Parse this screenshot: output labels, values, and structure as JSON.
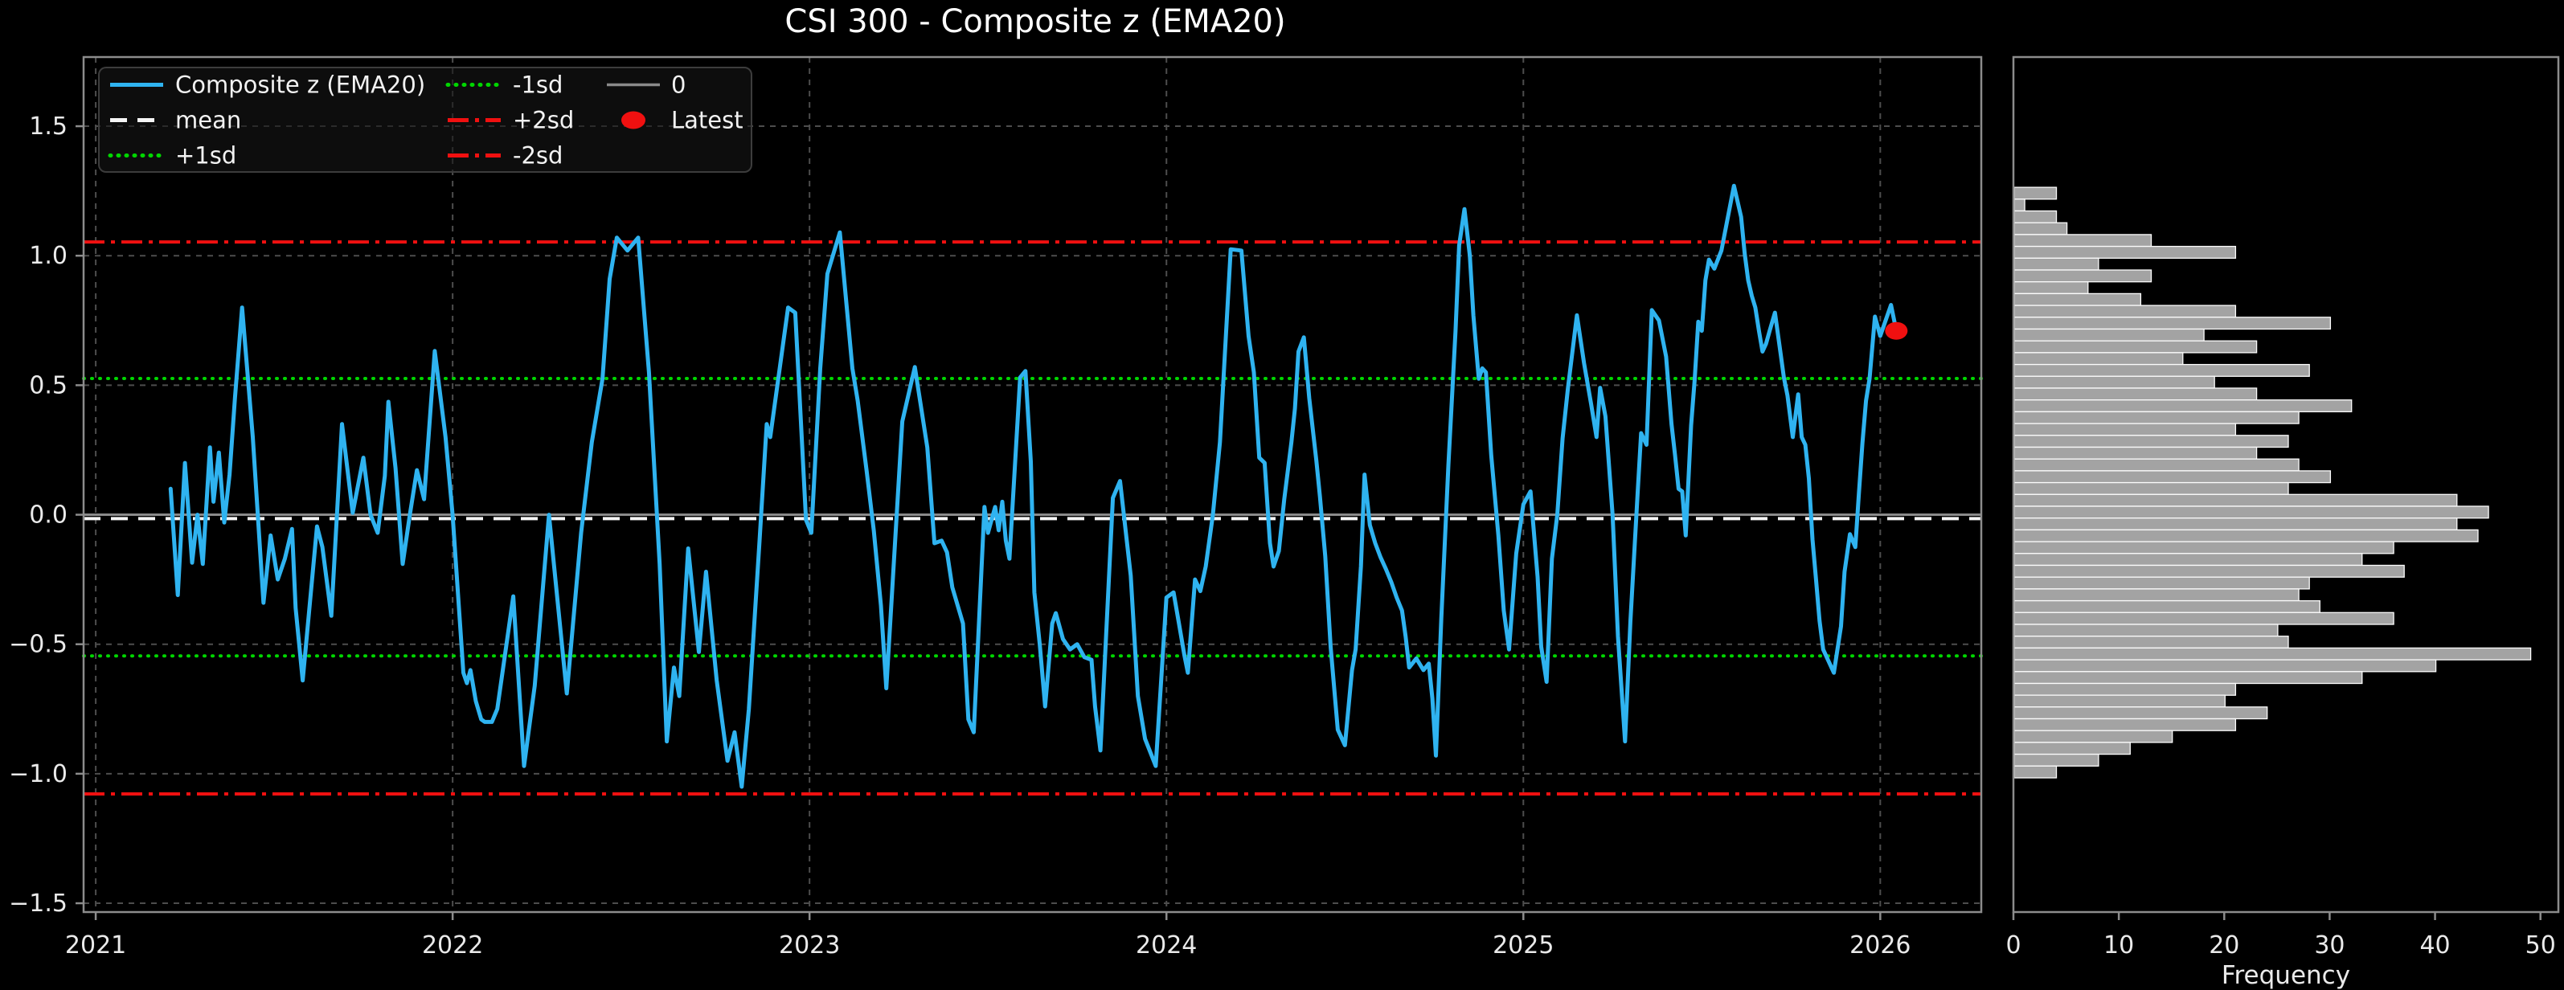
{
  "title": "CSI 300 - Composite z (EMA20)",
  "colors": {
    "background": "#000000",
    "series_line": "#2FB3F0",
    "mean_line": "#f5f5f5",
    "sd1_line": "#00d600",
    "sd2_line": "#f01010",
    "zero_line": "#8a8a8a",
    "latest_marker": "#f01010",
    "hist_bar_fill": "#a3a3a3",
    "hist_bar_edge": "#fbfbfb",
    "grid": "#4d4d4d",
    "spine": "#8c8c8c",
    "tick_label": "#eaeaea",
    "legend_border": "#3c3c3c"
  },
  "legend": {
    "items": [
      {
        "name": "composite-z",
        "label": "Composite z (EMA20)",
        "style": "solid",
        "color": "#2FB3F0"
      },
      {
        "name": "mean",
        "label": "mean",
        "style": "dashed",
        "color": "#f5f5f5"
      },
      {
        "name": "plus-1sd",
        "label": "+1sd",
        "style": "dotted",
        "color": "#00d600"
      },
      {
        "name": "minus-1sd",
        "label": "-1sd",
        "style": "dotted",
        "color": "#00d600"
      },
      {
        "name": "plus-2sd",
        "label": "+2sd",
        "style": "dashdot",
        "color": "#f01010"
      },
      {
        "name": "minus-2sd",
        "label": "-2sd",
        "style": "dashdot",
        "color": "#f01010"
      },
      {
        "name": "zero",
        "label": "0",
        "style": "solid",
        "color": "#8a8a8a"
      },
      {
        "name": "latest",
        "label": "Latest",
        "style": "marker",
        "color": "#f01010"
      }
    ]
  },
  "axes": {
    "main": {
      "x_range": [
        2020.966,
        2026.283
      ],
      "y_range": [
        -1.534,
        1.767
      ],
      "x_ticks": [
        {
          "v": 2021,
          "label": "2021"
        },
        {
          "v": 2022,
          "label": "2022"
        },
        {
          "v": 2023,
          "label": "2023"
        },
        {
          "v": 2024,
          "label": "2024"
        },
        {
          "v": 2025,
          "label": "2025"
        },
        {
          "v": 2026,
          "label": "2026"
        }
      ],
      "y_ticks": [
        {
          "v": 1.5,
          "label": "1.5"
        },
        {
          "v": 1.0,
          "label": "1.0"
        },
        {
          "v": 0.5,
          "label": "0.5"
        },
        {
          "v": 0.0,
          "label": "0.0"
        },
        {
          "v": -0.5,
          "label": "−0.5"
        },
        {
          "v": -1.0,
          "label": "−1.0"
        },
        {
          "v": -1.5,
          "label": "−1.5"
        }
      ],
      "grid": true
    },
    "hist": {
      "x_range": [
        0,
        51.7
      ],
      "x_ticks": [
        {
          "v": 0,
          "label": "0"
        },
        {
          "v": 10,
          "label": "10"
        },
        {
          "v": 20,
          "label": "20"
        },
        {
          "v": 30,
          "label": "30"
        },
        {
          "v": 40,
          "label": "40"
        },
        {
          "v": 50,
          "label": "50"
        }
      ],
      "xlabel": "Frequency",
      "grid": false
    }
  },
  "chart_data": {
    "type": "line",
    "title": "CSI 300 - Composite z (EMA20)",
    "legend_position": "upper left",
    "series": {
      "name": "Composite z (EMA20)",
      "points": [
        [
          2021.21,
          0.1
        ],
        [
          2021.23,
          -0.31
        ],
        [
          2021.25,
          0.2
        ],
        [
          2021.27,
          -0.185
        ],
        [
          2021.285,
          0.0
        ],
        [
          2021.3,
          -0.19
        ],
        [
          2021.32,
          0.26
        ],
        [
          2021.33,
          0.05
        ],
        [
          2021.345,
          0.24
        ],
        [
          2021.36,
          -0.03
        ],
        [
          2021.375,
          0.155
        ],
        [
          2021.39,
          0.45
        ],
        [
          2021.41,
          0.8
        ],
        [
          2021.44,
          0.3
        ],
        [
          2021.47,
          -0.34
        ],
        [
          2021.49,
          -0.08
        ],
        [
          2021.51,
          -0.25
        ],
        [
          2021.53,
          -0.17
        ],
        [
          2021.55,
          -0.055
        ],
        [
          2021.56,
          -0.36
        ],
        [
          2021.58,
          -0.64
        ],
        [
          2021.62,
          -0.045
        ],
        [
          2021.635,
          -0.125
        ],
        [
          2021.66,
          -0.39
        ],
        [
          2021.69,
          0.35
        ],
        [
          2021.72,
          0.007
        ],
        [
          2021.75,
          0.22
        ],
        [
          2021.77,
          0.0
        ],
        [
          2021.79,
          -0.07
        ],
        [
          2021.81,
          0.15
        ],
        [
          2021.82,
          0.436
        ],
        [
          2021.84,
          0.18
        ],
        [
          2021.86,
          -0.19
        ],
        [
          2021.88,
          0.0
        ],
        [
          2021.9,
          0.172
        ],
        [
          2021.92,
          0.06
        ],
        [
          2021.95,
          0.632
        ],
        [
          2021.98,
          0.3
        ],
        [
          2022.0,
          0.0
        ],
        [
          2022.03,
          -0.61
        ],
        [
          2022.04,
          -0.65
        ],
        [
          2022.05,
          -0.6
        ],
        [
          2022.065,
          -0.72
        ],
        [
          2022.08,
          -0.79
        ],
        [
          2022.09,
          -0.8
        ],
        [
          2022.11,
          -0.8
        ],
        [
          2022.125,
          -0.75
        ],
        [
          2022.17,
          -0.315
        ],
        [
          2022.2,
          -0.97
        ],
        [
          2022.23,
          -0.66
        ],
        [
          2022.27,
          0.0
        ],
        [
          2022.32,
          -0.69
        ],
        [
          2022.36,
          -0.07
        ],
        [
          2022.39,
          0.28
        ],
        [
          2022.42,
          0.525
        ],
        [
          2022.44,
          0.91
        ],
        [
          2022.46,
          1.07
        ],
        [
          2022.49,
          1.02
        ],
        [
          2022.52,
          1.07
        ],
        [
          2022.55,
          0.55
        ],
        [
          2022.58,
          -0.19
        ],
        [
          2022.6,
          -0.875
        ],
        [
          2022.62,
          -0.59
        ],
        [
          2022.635,
          -0.7
        ],
        [
          2022.66,
          -0.13
        ],
        [
          2022.69,
          -0.53
        ],
        [
          2022.71,
          -0.22
        ],
        [
          2022.74,
          -0.64
        ],
        [
          2022.77,
          -0.95
        ],
        [
          2022.79,
          -0.84
        ],
        [
          2022.81,
          -1.05
        ],
        [
          2022.83,
          -0.75
        ],
        [
          2022.86,
          -0.1
        ],
        [
          2022.88,
          0.35
        ],
        [
          2022.89,
          0.3
        ],
        [
          2022.94,
          0.8
        ],
        [
          2022.96,
          0.78
        ],
        [
          2022.99,
          -0.02
        ],
        [
          2023.005,
          -0.07
        ],
        [
          2023.03,
          0.565
        ],
        [
          2023.05,
          0.93
        ],
        [
          2023.085,
          1.09
        ],
        [
          2023.12,
          0.565
        ],
        [
          2023.135,
          0.44
        ],
        [
          2023.16,
          0.17
        ],
        [
          2023.18,
          -0.06
        ],
        [
          2023.2,
          -0.35
        ],
        [
          2023.215,
          -0.67
        ],
        [
          2023.26,
          0.36
        ],
        [
          2023.295,
          0.57
        ],
        [
          2023.33,
          0.26
        ],
        [
          2023.35,
          -0.11
        ],
        [
          2023.37,
          -0.1
        ],
        [
          2023.385,
          -0.145
        ],
        [
          2023.4,
          -0.28
        ],
        [
          2023.43,
          -0.42
        ],
        [
          2023.445,
          -0.79
        ],
        [
          2023.46,
          -0.84
        ],
        [
          2023.49,
          0.03
        ],
        [
          2023.5,
          -0.07
        ],
        [
          2023.52,
          0.03
        ],
        [
          2023.53,
          -0.06
        ],
        [
          2023.54,
          0.05
        ],
        [
          2023.55,
          -0.1
        ],
        [
          2023.56,
          -0.17
        ],
        [
          2023.59,
          0.53
        ],
        [
          2023.605,
          0.555
        ],
        [
          2023.62,
          0.205
        ],
        [
          2023.63,
          -0.3
        ],
        [
          2023.645,
          -0.5
        ],
        [
          2023.66,
          -0.74
        ],
        [
          2023.68,
          -0.42
        ],
        [
          2023.69,
          -0.38
        ],
        [
          2023.71,
          -0.48
        ],
        [
          2023.73,
          -0.52
        ],
        [
          2023.75,
          -0.5
        ],
        [
          2023.77,
          -0.55
        ],
        [
          2023.79,
          -0.56
        ],
        [
          2023.8,
          -0.74
        ],
        [
          2023.815,
          -0.91
        ],
        [
          2023.85,
          0.065
        ],
        [
          2023.87,
          0.13
        ],
        [
          2023.9,
          -0.235
        ],
        [
          2023.92,
          -0.7
        ],
        [
          2023.94,
          -0.865
        ],
        [
          2023.97,
          -0.97
        ],
        [
          2024.0,
          -0.32
        ],
        [
          2024.02,
          -0.3
        ],
        [
          2024.035,
          -0.42
        ],
        [
          2024.05,
          -0.54
        ],
        [
          2024.06,
          -0.61
        ],
        [
          2024.08,
          -0.25
        ],
        [
          2024.095,
          -0.295
        ],
        [
          2024.11,
          -0.2
        ],
        [
          2024.13,
          0.0
        ],
        [
          2024.15,
          0.28
        ],
        [
          2024.18,
          1.025
        ],
        [
          2024.21,
          1.02
        ],
        [
          2024.23,
          0.69
        ],
        [
          2024.245,
          0.55
        ],
        [
          2024.26,
          0.22
        ],
        [
          2024.275,
          0.2
        ],
        [
          2024.29,
          -0.11
        ],
        [
          2024.3,
          -0.2
        ],
        [
          2024.315,
          -0.14
        ],
        [
          2024.33,
          0.06
        ],
        [
          2024.35,
          0.28
        ],
        [
          2024.36,
          0.41
        ],
        [
          2024.37,
          0.63
        ],
        [
          2024.385,
          0.685
        ],
        [
          2024.4,
          0.45
        ],
        [
          2024.42,
          0.21
        ],
        [
          2024.43,
          0.07
        ],
        [
          2024.445,
          -0.16
        ],
        [
          2024.46,
          -0.51
        ],
        [
          2024.48,
          -0.83
        ],
        [
          2024.5,
          -0.89
        ],
        [
          2024.52,
          -0.6
        ],
        [
          2024.53,
          -0.52
        ],
        [
          2024.545,
          -0.2
        ],
        [
          2024.555,
          0.155
        ],
        [
          2024.57,
          -0.04
        ],
        [
          2024.585,
          -0.11
        ],
        [
          2024.6,
          -0.165
        ],
        [
          2024.615,
          -0.21
        ],
        [
          2024.63,
          -0.26
        ],
        [
          2024.645,
          -0.32
        ],
        [
          2024.66,
          -0.37
        ],
        [
          2024.67,
          -0.47
        ],
        [
          2024.68,
          -0.59
        ],
        [
          2024.7,
          -0.555
        ],
        [
          2024.72,
          -0.6
        ],
        [
          2024.735,
          -0.575
        ],
        [
          2024.745,
          -0.71
        ],
        [
          2024.755,
          -0.93
        ],
        [
          2024.77,
          -0.4
        ],
        [
          2024.79,
          0.19
        ],
        [
          2024.81,
          0.71
        ],
        [
          2024.82,
          1.04
        ],
        [
          2024.835,
          1.18
        ],
        [
          2024.85,
          1.0
        ],
        [
          2024.86,
          0.77
        ],
        [
          2024.875,
          0.525
        ],
        [
          2024.885,
          0.565
        ],
        [
          2024.895,
          0.55
        ],
        [
          2024.91,
          0.23
        ],
        [
          2024.93,
          -0.08
        ],
        [
          2024.945,
          -0.37
        ],
        [
          2024.96,
          -0.52
        ],
        [
          2024.98,
          -0.15
        ],
        [
          2025.0,
          0.04
        ],
        [
          2025.02,
          0.09
        ],
        [
          2025.04,
          -0.24
        ],
        [
          2025.05,
          -0.51
        ],
        [
          2025.065,
          -0.645
        ],
        [
          2025.08,
          -0.17
        ],
        [
          2025.095,
          0.0
        ],
        [
          2025.11,
          0.295
        ],
        [
          2025.125,
          0.49
        ],
        [
          2025.15,
          0.77
        ],
        [
          2025.17,
          0.585
        ],
        [
          2025.19,
          0.425
        ],
        [
          2025.205,
          0.3
        ],
        [
          2025.215,
          0.49
        ],
        [
          2025.23,
          0.38
        ],
        [
          2025.25,
          0.0
        ],
        [
          2025.265,
          -0.47
        ],
        [
          2025.285,
          -0.875
        ],
        [
          2025.3,
          -0.41
        ],
        [
          2025.32,
          0.08
        ],
        [
          2025.33,
          0.315
        ],
        [
          2025.345,
          0.27
        ],
        [
          2025.36,
          0.79
        ],
        [
          2025.38,
          0.75
        ],
        [
          2025.4,
          0.61
        ],
        [
          2025.415,
          0.35
        ],
        [
          2025.425,
          0.23
        ],
        [
          2025.435,
          0.1
        ],
        [
          2025.445,
          0.09
        ],
        [
          2025.455,
          -0.08
        ],
        [
          2025.47,
          0.345
        ],
        [
          2025.48,
          0.52
        ],
        [
          2025.49,
          0.745
        ],
        [
          2025.5,
          0.71
        ],
        [
          2025.51,
          0.905
        ],
        [
          2025.52,
          0.985
        ],
        [
          2025.535,
          0.95
        ],
        [
          2025.555,
          1.02
        ],
        [
          2025.59,
          1.27
        ],
        [
          2025.61,
          1.15
        ],
        [
          2025.62,
          1.01
        ],
        [
          2025.63,
          0.905
        ],
        [
          2025.64,
          0.845
        ],
        [
          2025.65,
          0.8
        ],
        [
          2025.66,
          0.71
        ],
        [
          2025.67,
          0.63
        ],
        [
          2025.68,
          0.66
        ],
        [
          2025.69,
          0.71
        ],
        [
          2025.705,
          0.78
        ],
        [
          2025.72,
          0.63
        ],
        [
          2025.73,
          0.53
        ],
        [
          2025.74,
          0.46
        ],
        [
          2025.755,
          0.3
        ],
        [
          2025.77,
          0.465
        ],
        [
          2025.78,
          0.3
        ],
        [
          2025.79,
          0.27
        ],
        [
          2025.8,
          0.14
        ],
        [
          2025.81,
          -0.095
        ],
        [
          2025.82,
          -0.25
        ],
        [
          2025.83,
          -0.41
        ],
        [
          2025.84,
          -0.52
        ],
        [
          2025.87,
          -0.61
        ],
        [
          2025.89,
          -0.43
        ],
        [
          2025.9,
          -0.22
        ],
        [
          2025.915,
          -0.075
        ],
        [
          2025.93,
          -0.125
        ],
        [
          2025.94,
          0.08
        ],
        [
          2025.95,
          0.275
        ],
        [
          2025.96,
          0.44
        ],
        [
          2025.97,
          0.525
        ],
        [
          2025.985,
          0.765
        ],
        [
          2026.0,
          0.69
        ],
        [
          2026.03,
          0.81
        ],
        [
          2026.045,
          0.71
        ]
      ]
    },
    "latest": {
      "name": "Latest",
      "x": 2026.045,
      "y": 0.71
    },
    "reference_lines": [
      {
        "name": "plus-2sd",
        "label": "+2sd",
        "value": 1.053,
        "style": "dashdot",
        "color": "#f01010"
      },
      {
        "name": "plus-1sd",
        "label": "+1sd",
        "value": 0.526,
        "style": "dotted",
        "color": "#00d600"
      },
      {
        "name": "mean",
        "label": "mean",
        "value": -0.015,
        "style": "dashed",
        "color": "#f5f5f5"
      },
      {
        "name": "zero",
        "label": "0",
        "value": 0.0,
        "style": "solid",
        "color": "#8a8a8a"
      },
      {
        "name": "minus-1sd",
        "label": "-1sd",
        "value": -0.545,
        "style": "dotted",
        "color": "#00d600"
      },
      {
        "name": "minus-2sd",
        "label": "-2sd",
        "value": -1.078,
        "style": "dashdot",
        "color": "#f01010"
      }
    ],
    "histogram": {
      "type": "bar",
      "orientation": "horizontal",
      "xlabel": "Frequency",
      "xlim": [
        0,
        51.7
      ],
      "bin_max_z": 1.264,
      "bin_min_z": -1.016,
      "bin_width_z": 0.0456,
      "frequencies_top_to_bottom": [
        4,
        1,
        4,
        5,
        13,
        21,
        8,
        13,
        7,
        12,
        21,
        30,
        18,
        23,
        16,
        28,
        19,
        23,
        32,
        27,
        21,
        26,
        23,
        27,
        30,
        26,
        42,
        45,
        42,
        44,
        36,
        33,
        37,
        28,
        27,
        29,
        36,
        25,
        26,
        49,
        40,
        33,
        21,
        20,
        24,
        21,
        15,
        11,
        8,
        4
      ]
    }
  }
}
